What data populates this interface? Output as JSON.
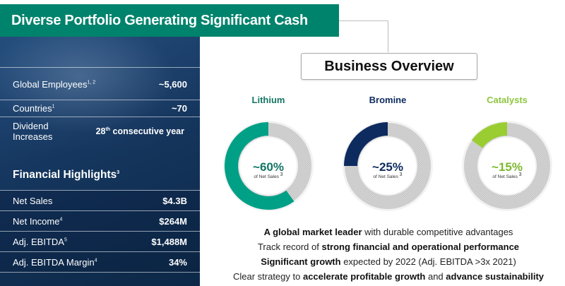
{
  "title": "Diverse Portfolio Generating Significant Cash",
  "stats": [
    {
      "label_main": "Global Employees",
      "label_sup": "1, 2",
      "value": "~5,600"
    },
    {
      "label_main": "Countries",
      "label_sup": "1",
      "value": "~70"
    },
    {
      "label_main": "Dividend Increases",
      "value_pre": "28",
      "value_sup": "th",
      "value_post": " consecutive year"
    }
  ],
  "financial_highlights": {
    "title": "Financial Highlights",
    "title_sup": "3",
    "rows": [
      {
        "label": "Net Sales",
        "sup": "",
        "value": "$4.3B"
      },
      {
        "label": "Net Income",
        "sup": "4",
        "value": "$264M"
      },
      {
        "label": "Adj. EBITDA",
        "sup": "5",
        "value": "$1,488M"
      },
      {
        "label": "Adj. EBITDA Margin",
        "sup": "4",
        "value": "34%"
      }
    ]
  },
  "overview_title": "Business Overview",
  "segments": [
    {
      "name": "Lithium",
      "pct": "~60%",
      "sub": "of Net Sales",
      "sub_sup": "3",
      "share": 0.6,
      "color": "#00a087",
      "name_color": "#137564"
    },
    {
      "name": "Bromine",
      "pct": "~25%",
      "sub": "of Net Sales",
      "sub_sup": "3",
      "share": 0.25,
      "color": "#0d2b5e",
      "name_color": "#0d2b5e"
    },
    {
      "name": "Catalysts",
      "pct": "~15%",
      "sub": "of Net Sales",
      "sub_sup": "3",
      "share": 0.15,
      "color": "#9acd32",
      "name_color": "#8dc63f"
    }
  ],
  "bullets": [
    {
      "bold": "A global market leader",
      "rest": " with durable competitive advantages"
    },
    {
      "pre": "Track record of ",
      "bold": "strong financial and operational performance"
    },
    {
      "bold": "Significant growth",
      "rest": " expected by 2022 (Adj. EBITDA >3x 2021)"
    },
    {
      "pre": "Clear strategy to ",
      "bold": "accelerate profitable growth",
      "mid": " and ",
      "bold2": "advance sustainability"
    }
  ]
}
